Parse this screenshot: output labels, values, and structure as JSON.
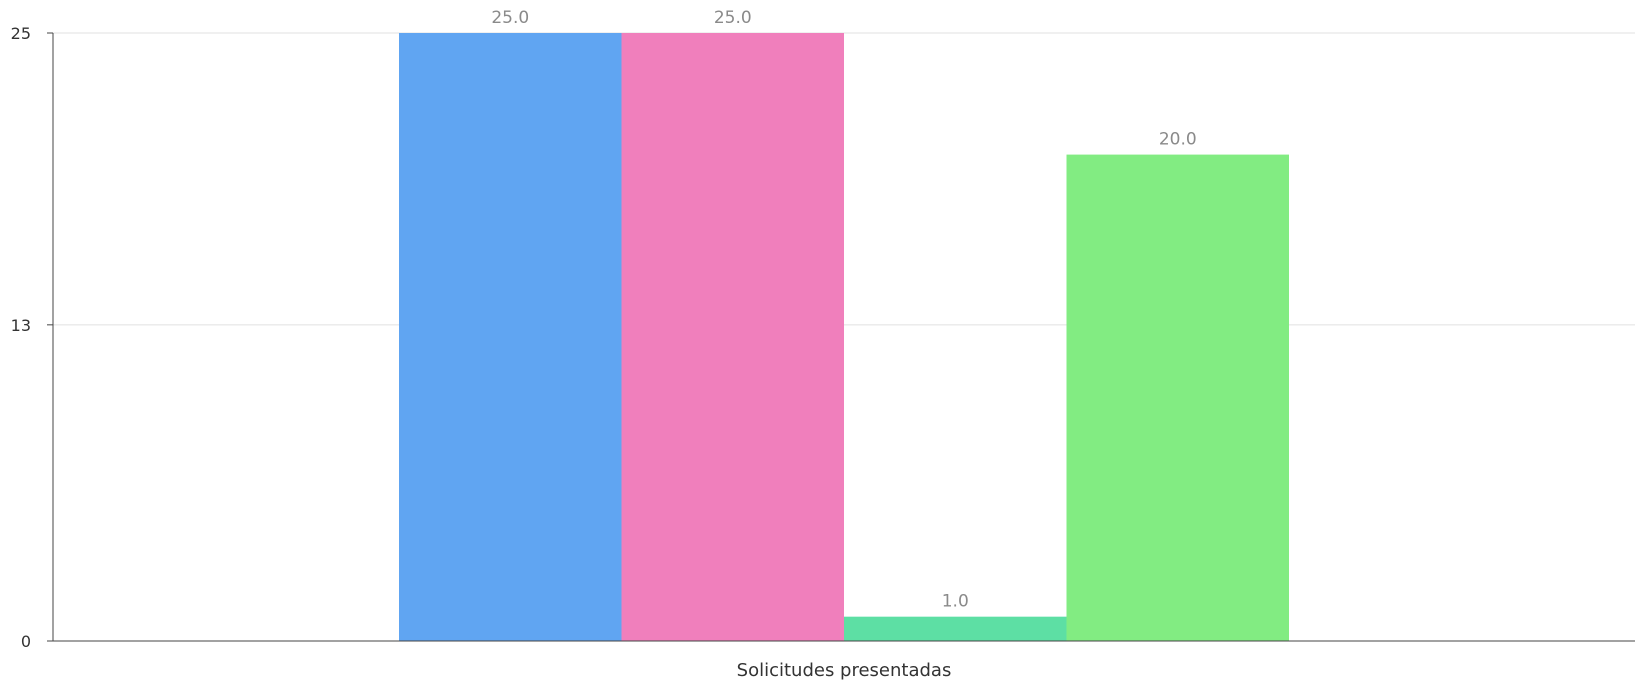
{
  "chart_data": {
    "type": "bar",
    "categories": [
      "Solicitudes presentadas"
    ],
    "series": [
      {
        "values": [
          25.0
        ],
        "value_label": "25.0",
        "color": "#60a5f2"
      },
      {
        "values": [
          25.0
        ],
        "value_label": "25.0",
        "color": "#f07fbc"
      },
      {
        "values": [
          1.0
        ],
        "value_label": "1.0",
        "color": "#5ddfa4"
      },
      {
        "values": [
          20.0
        ],
        "value_label": "20.0",
        "color": "#82ec82"
      }
    ],
    "y_ticks": [
      0,
      13,
      25
    ],
    "y_tick_labels": [
      "0",
      "13",
      "25"
    ],
    "ylim": [
      0,
      25
    ],
    "title": "",
    "xlabel": "",
    "ylabel": "",
    "grid": true,
    "legend": false
  }
}
